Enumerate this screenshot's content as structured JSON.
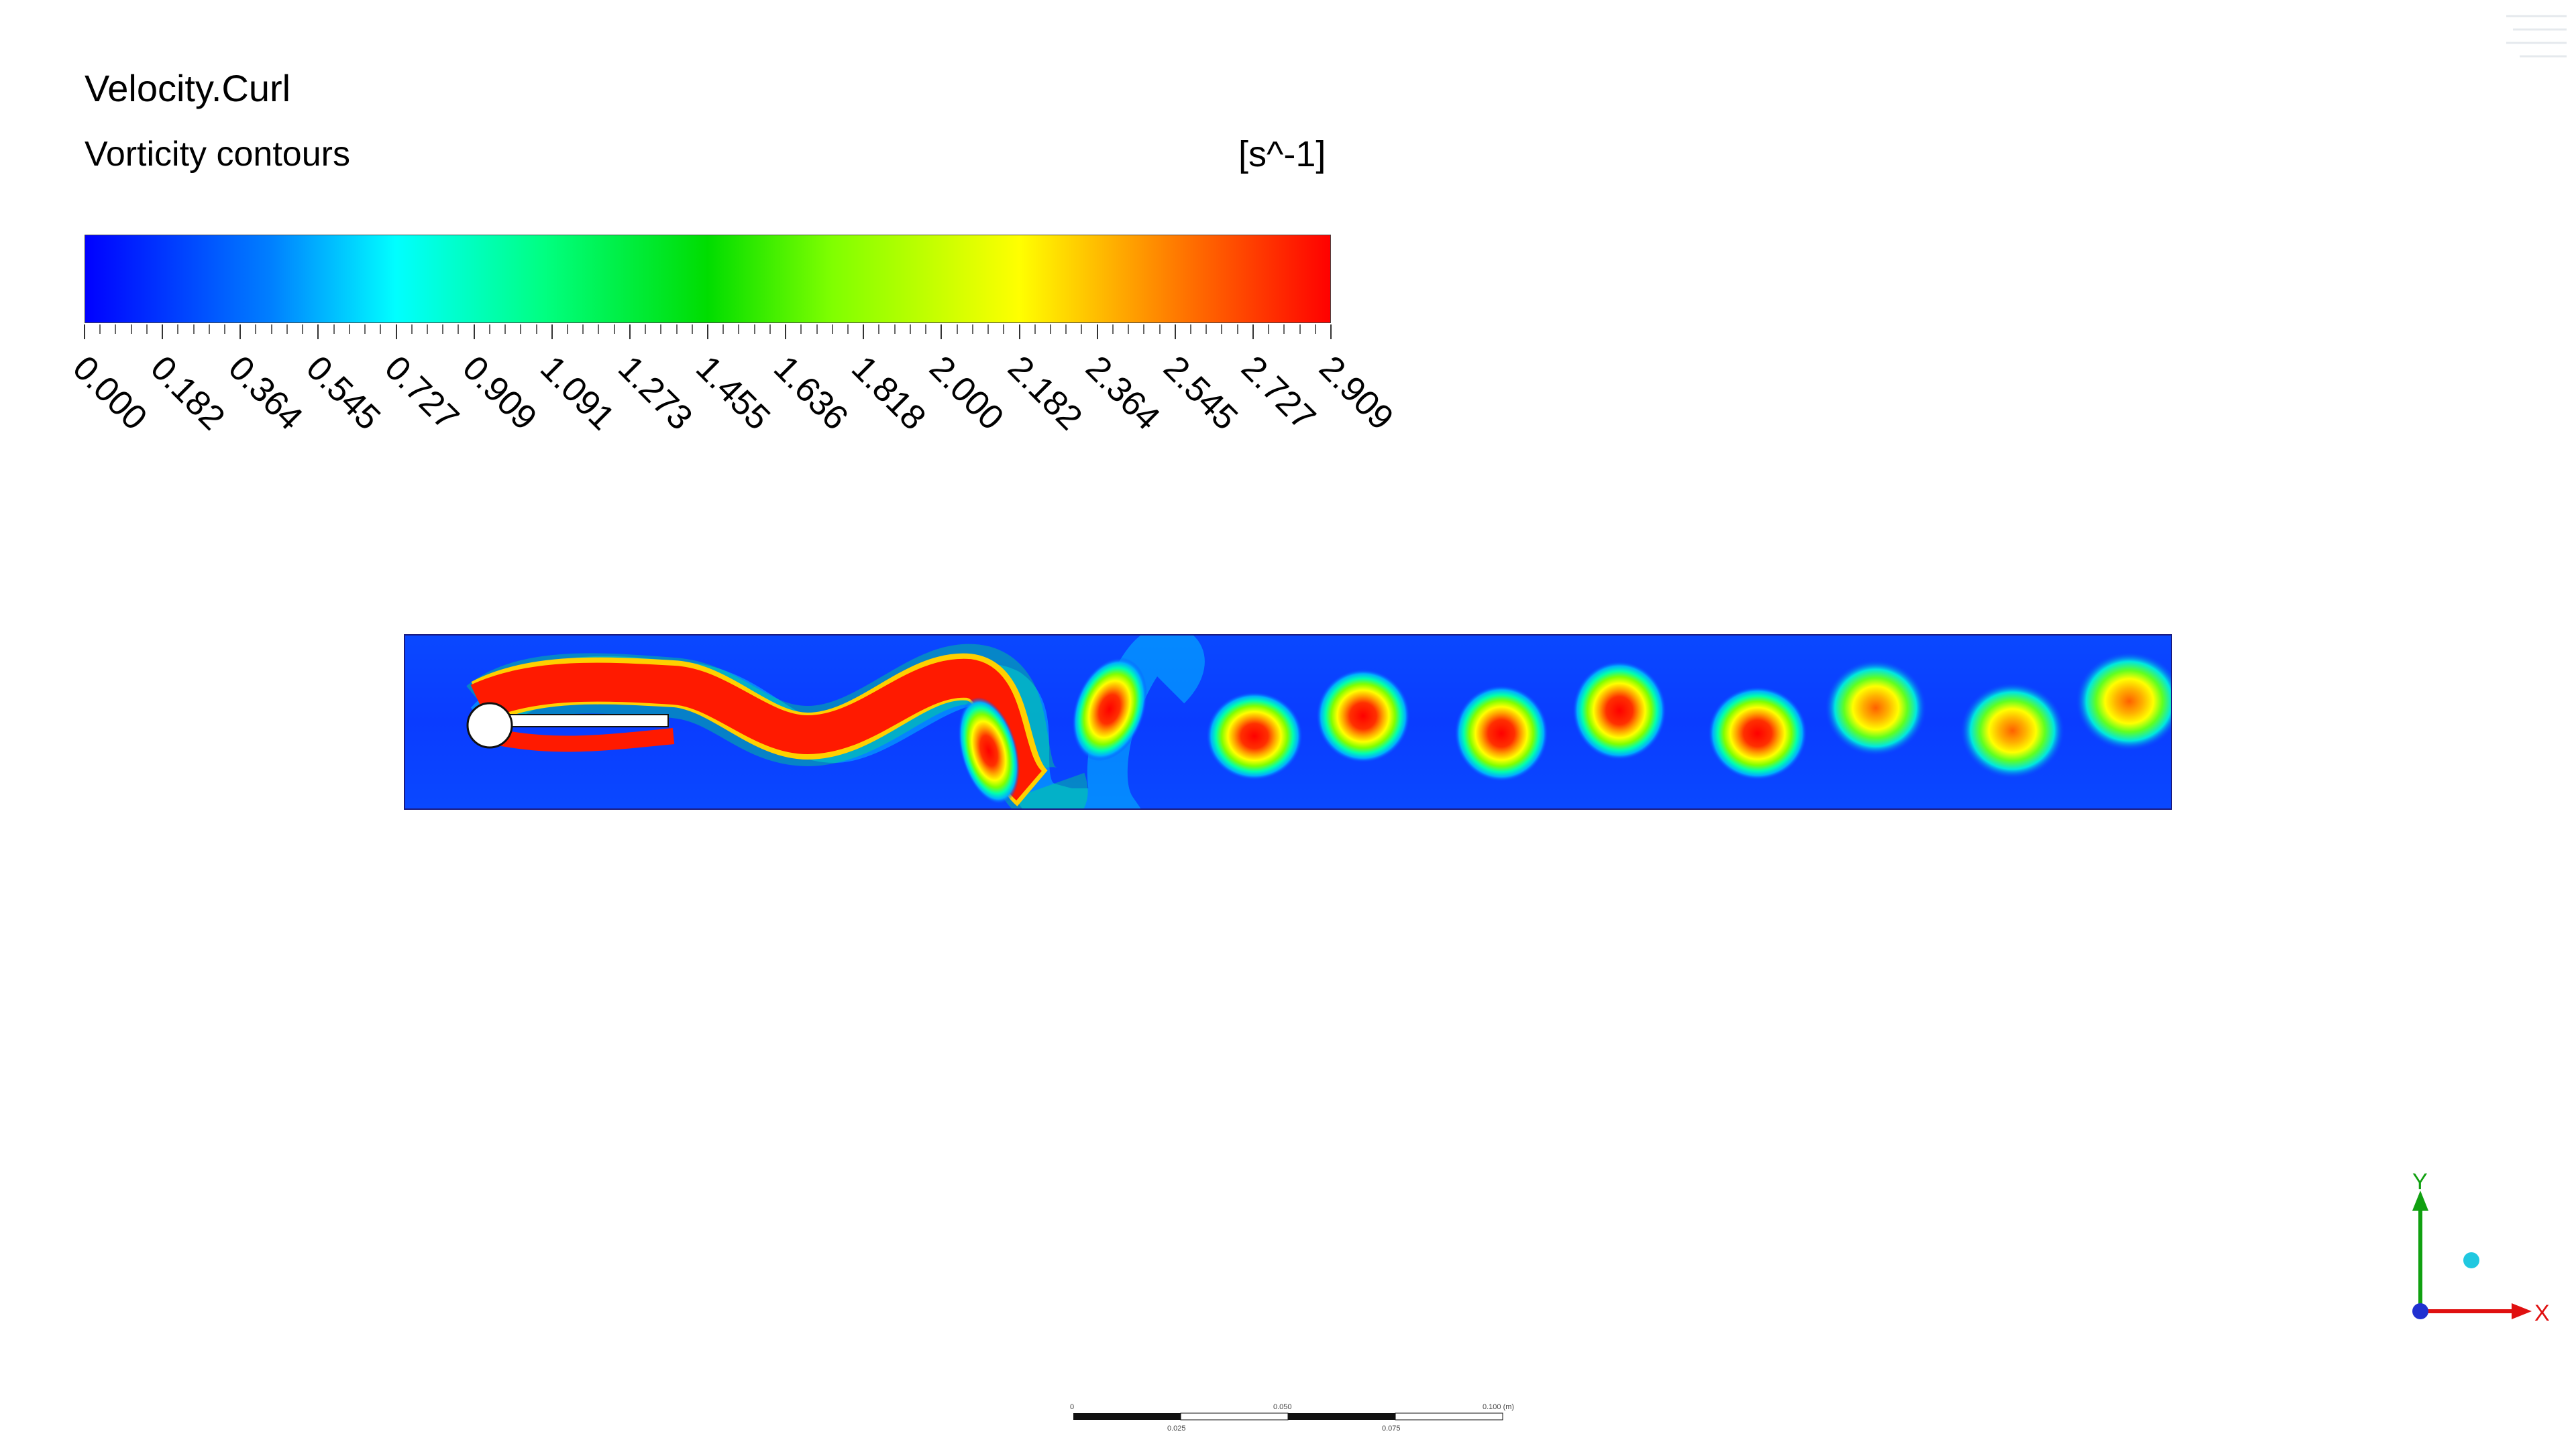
{
  "title": "Velocity.Curl",
  "subtitle": "Vorticity contours",
  "units": "[s^-1]",
  "legend": {
    "tick_labels": [
      "0.000",
      "0.182",
      "0.364",
      "0.545",
      "0.727",
      "0.909",
      "1.091",
      "1.273",
      "1.455",
      "1.636",
      "1.818",
      "2.000",
      "2.182",
      "2.364",
      "2.545",
      "2.727",
      "2.909"
    ],
    "min": 0.0,
    "max": 2.909,
    "colormap": [
      "#0000ff",
      "#00ffff",
      "#00dd00",
      "#ffff00",
      "#ff0000"
    ]
  },
  "axes_triad": {
    "x_label": "X",
    "y_label": "Y",
    "x_color": "#e01010",
    "y_color": "#10a010"
  },
  "scale_bar": {
    "top_labels": [
      "0",
      "0.050",
      "0.100 (m)"
    ],
    "bottom_labels": [
      "0.025",
      "0.075"
    ]
  }
}
